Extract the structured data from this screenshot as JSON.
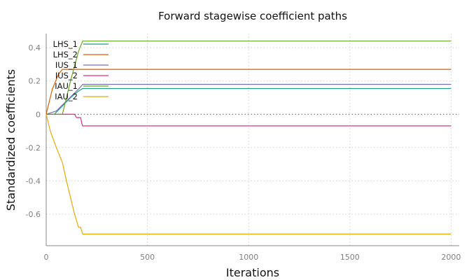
{
  "chart_data": {
    "type": "line",
    "title": "Forward stagewise coefficient paths",
    "xlabel": "Iterations",
    "ylabel": "Standardized coefficients",
    "xlim": [
      0,
      2040
    ],
    "ylim": [
      -0.79,
      0.485
    ],
    "xticks": [
      0,
      500,
      1000,
      1500,
      2000
    ],
    "xtick_labels": [
      "0",
      "500",
      "1000",
      "1500",
      "2000"
    ],
    "yticks": [
      0.4,
      0.2,
      0,
      -0.2,
      -0.4,
      -0.6
    ],
    "ytick_labels": [
      "0.4",
      "0.2",
      "0",
      "-0.2",
      "-0.4",
      "-0.6"
    ],
    "grid": true,
    "legend_position": "top-left",
    "series": [
      {
        "name": "LHS_1",
        "color": "#1b9e77",
        "x": [
          0,
          40,
          80,
          120,
          160,
          180,
          2000
        ],
        "y": [
          0,
          0,
          0.05,
          0.1,
          0.14,
          0.155,
          0.155
        ]
      },
      {
        "name": "LHS_2",
        "color": "#d95f02",
        "x": [
          0,
          30,
          60,
          80,
          2000
        ],
        "y": [
          0,
          0.15,
          0.24,
          0.27,
          0.27
        ]
      },
      {
        "name": "IUS_1",
        "color": "#7570b3",
        "x": [
          0,
          50,
          100,
          150,
          170,
          180,
          2000
        ],
        "y": [
          0,
          0.02,
          0.08,
          0.14,
          0.165,
          0.18,
          0.18
        ]
      },
      {
        "name": "IUS_2",
        "color": "#e7298a",
        "x": [
          0,
          140,
          150,
          170,
          175,
          180,
          2000
        ],
        "y": [
          0,
          0,
          -0.02,
          -0.02,
          -0.05,
          -0.07,
          -0.07
        ]
      },
      {
        "name": "IAU_1",
        "color": "#66a61e",
        "x": [
          0,
          80,
          120,
          160,
          180,
          2000
        ],
        "y": [
          0,
          0,
          0.2,
          0.38,
          0.44,
          0.44
        ]
      },
      {
        "name": "IAU_2",
        "color": "#e6ab02",
        "x": [
          0,
          20,
          50,
          80,
          100,
          120,
          140,
          160,
          170,
          180,
          2000
        ],
        "y": [
          0,
          -0.1,
          -0.2,
          -0.29,
          -0.4,
          -0.5,
          -0.6,
          -0.68,
          -0.68,
          -0.72,
          -0.72
        ]
      }
    ]
  }
}
